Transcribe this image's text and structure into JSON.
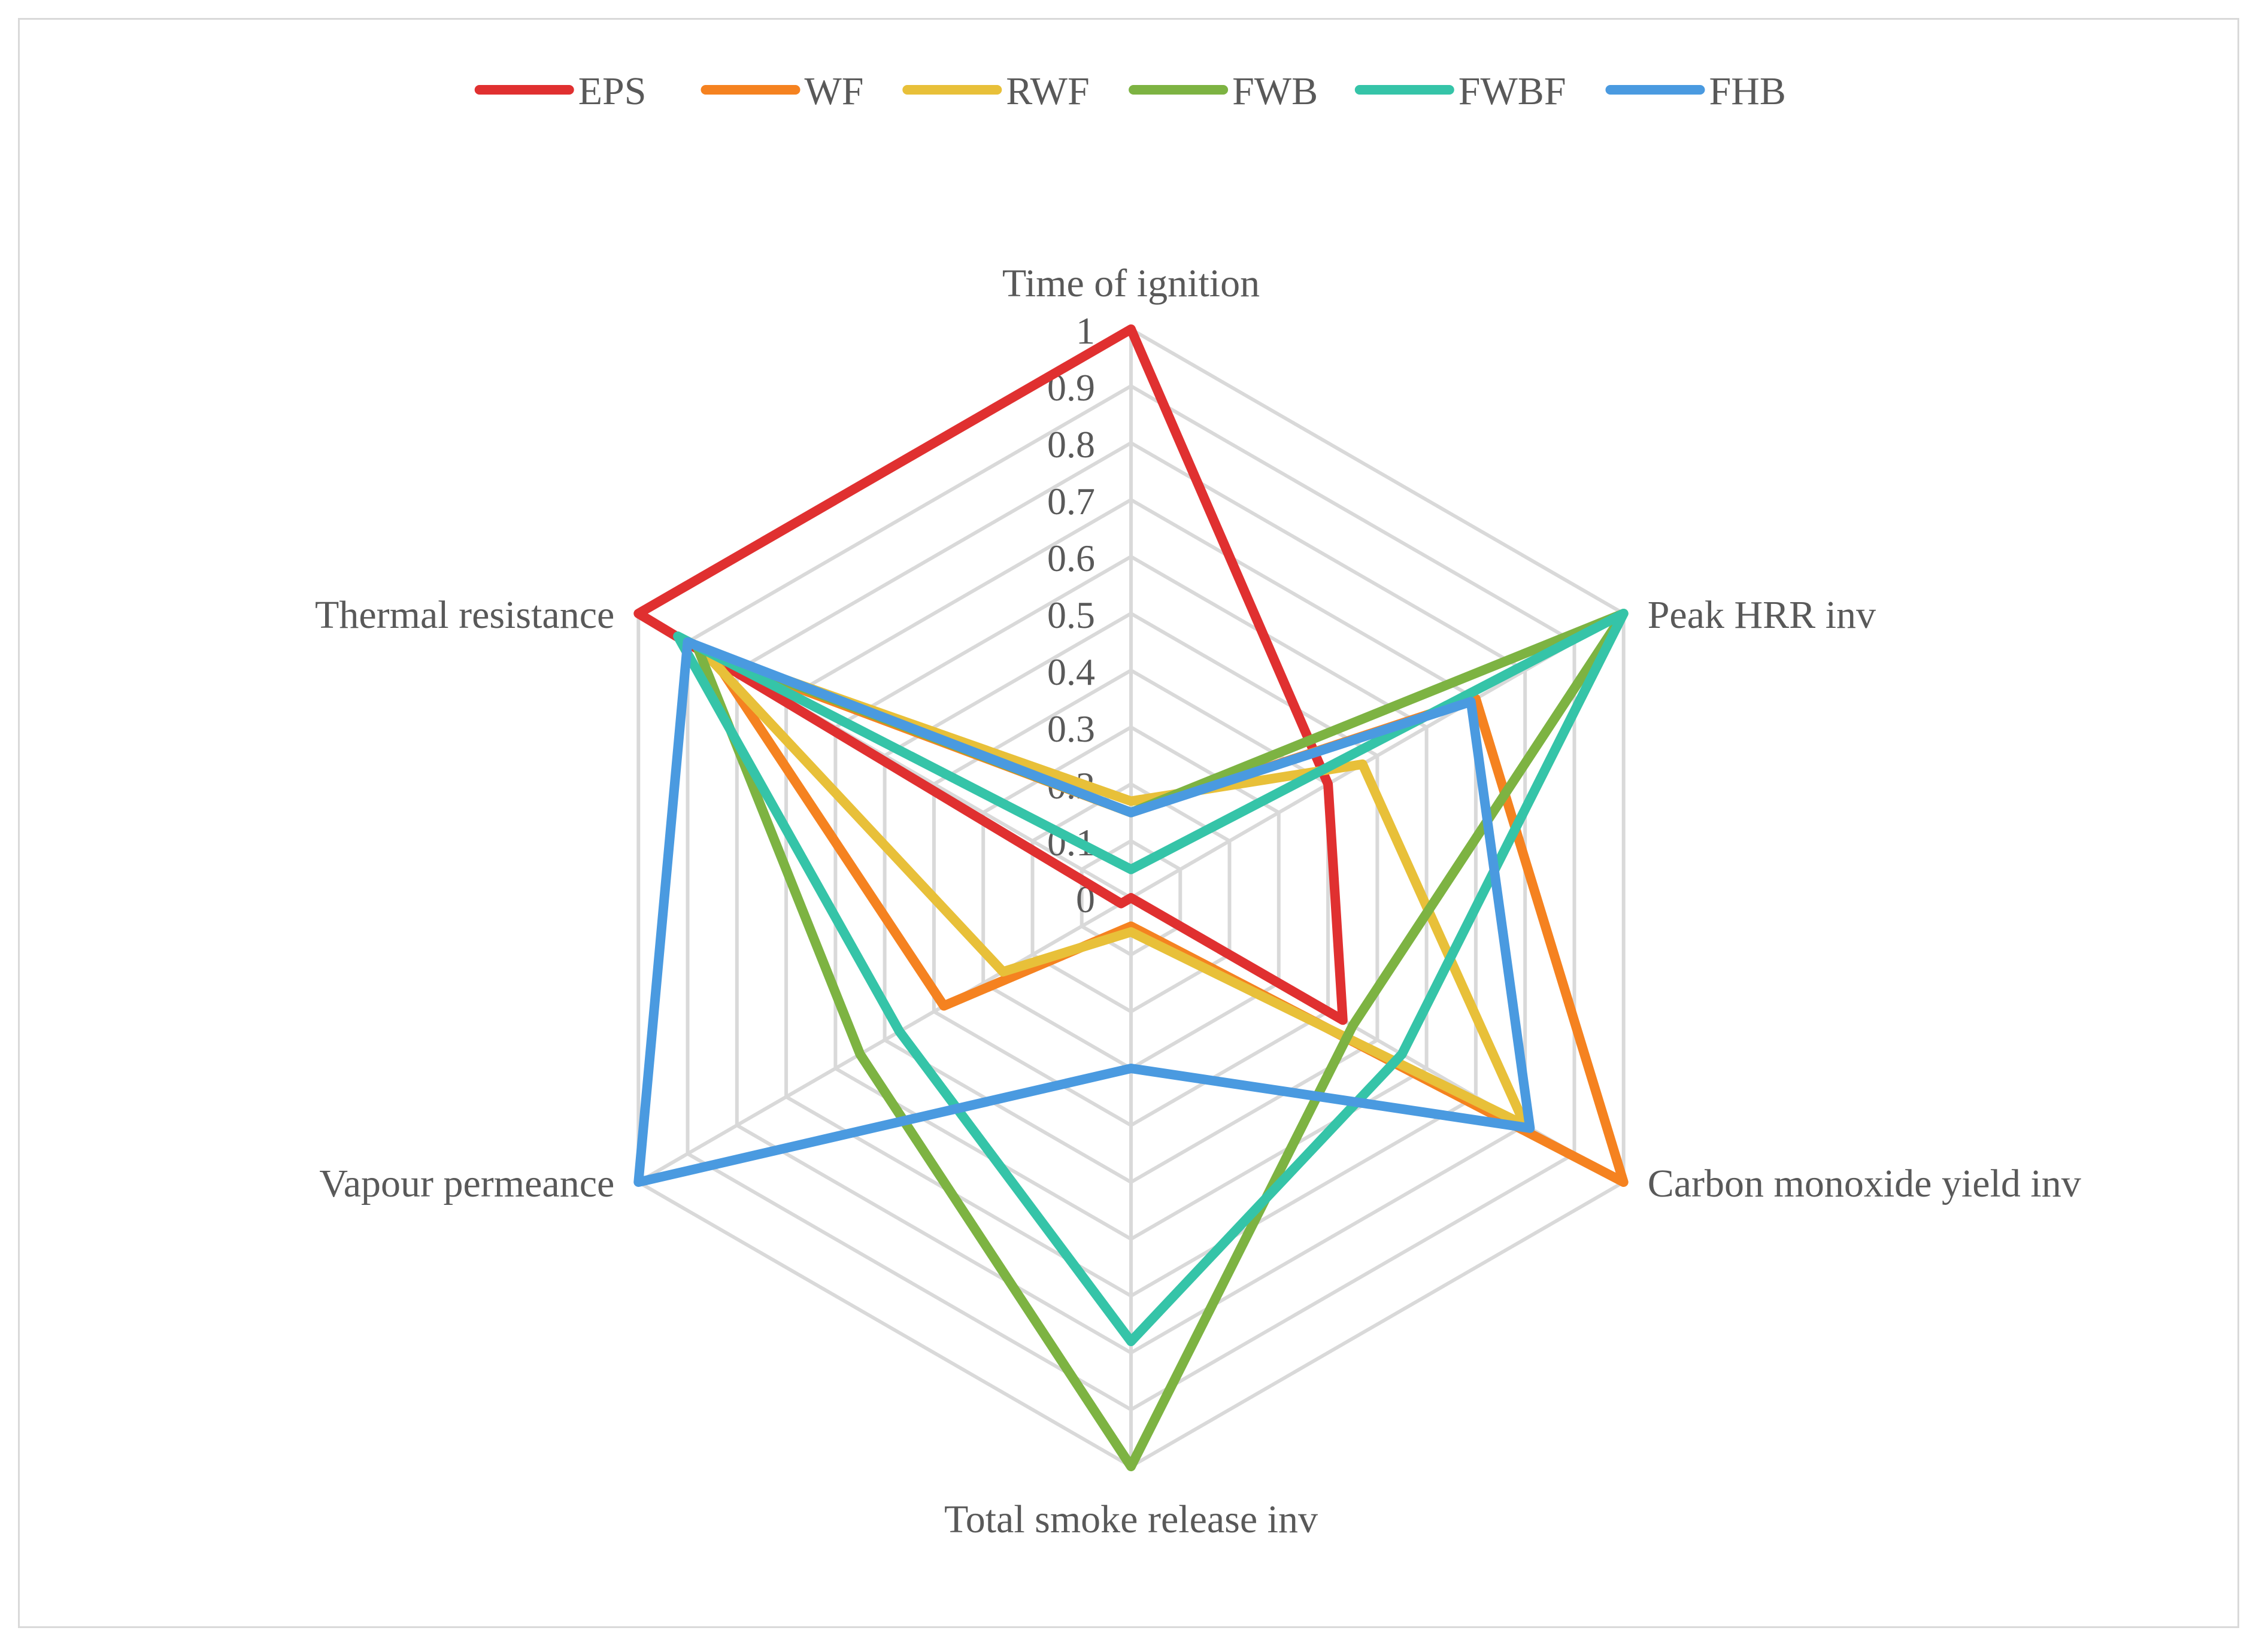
{
  "chart_data": {
    "type": "radar",
    "axes": [
      "Time of ignition",
      "Peak HRR inv",
      "Carbon monoxide yield inv",
      "Total smoke release inv",
      "Vapour permeance",
      "Thermal resistance"
    ],
    "radial_ticks": [
      "0",
      "0.1",
      "0.2",
      "0.3",
      "0.4",
      "0.5",
      "0.6",
      "0.7",
      "0.8",
      "0.9",
      "1"
    ],
    "rlim": [
      0,
      1
    ],
    "grid": true,
    "legend_position": "top",
    "series": [
      {
        "name": "EPS",
        "color": "#e03030",
        "values": [
          1.0,
          0.4,
          0.43,
          0.0,
          0.02,
          1.0
        ]
      },
      {
        "name": "WF",
        "color": "#f58220",
        "values": [
          0.15,
          0.7,
          1.0,
          0.05,
          0.38,
          0.85
        ]
      },
      {
        "name": "RWF",
        "color": "#e8c039",
        "values": [
          0.17,
          0.47,
          0.8,
          0.06,
          0.26,
          0.87
        ]
      },
      {
        "name": "FWB",
        "color": "#7db342",
        "values": [
          0.15,
          1.0,
          0.45,
          1.0,
          0.55,
          0.88
        ]
      },
      {
        "name": "FWBF",
        "color": "#35c4a8",
        "values": [
          0.05,
          1.0,
          0.55,
          0.78,
          0.47,
          0.92
        ]
      },
      {
        "name": "FHB",
        "color": "#4a9ae0",
        "values": [
          0.15,
          0.69,
          0.81,
          0.3,
          1.0,
          0.9
        ]
      }
    ]
  }
}
